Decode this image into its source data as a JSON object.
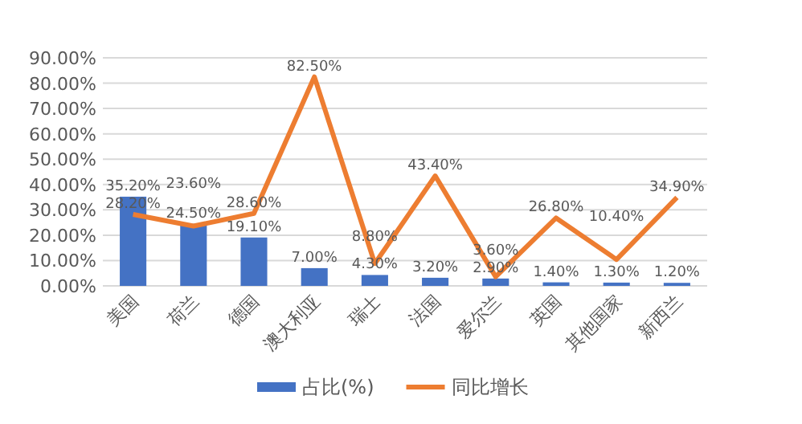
{
  "chart_data": {
    "type": "bar",
    "categories": [
      "美国",
      "荷兰",
      "德国",
      "澳大利亚",
      "瑞士",
      "法国",
      "爱尔兰",
      "英国",
      "其他国家",
      "新西兰"
    ],
    "series": [
      {
        "name": "占比(%)",
        "color": "#4472c4",
        "values": [
          35.2,
          24.5,
          19.1,
          7.0,
          4.3,
          3.2,
          2.9,
          1.4,
          1.3,
          1.2
        ],
        "value_labels": [
          "35.20%",
          "24.50%",
          "19.10%",
          "7.00%",
          "4.30%",
          "3.20%",
          "2.90%",
          "1.40%",
          "1.30%",
          "1.20%"
        ]
      },
      {
        "name": "同比增长",
        "type": "line",
        "color": "#ed7d31",
        "values": [
          28.2,
          23.6,
          28.6,
          82.5,
          8.8,
          43.4,
          3.6,
          26.8,
          10.4,
          34.9
        ],
        "value_labels": [
          "28.20%",
          "23.60%",
          "28.60%",
          "82.50%",
          "8.80%",
          "43.40%",
          "3.60%",
          "26.80%",
          "10.40%",
          "34.90%"
        ]
      }
    ],
    "ylim": [
      0,
      90
    ],
    "yticks": [
      {
        "value": 0,
        "label": "0.00%"
      },
      {
        "value": 10,
        "label": "10.00%"
      },
      {
        "value": 20,
        "label": "20.00%"
      },
      {
        "value": 30,
        "label": "30.00%"
      },
      {
        "value": 40,
        "label": "40.00%"
      },
      {
        "value": 50,
        "label": "50.00%"
      },
      {
        "value": 60,
        "label": "60.00%"
      },
      {
        "value": 70,
        "label": "70.00%"
      },
      {
        "value": 80,
        "label": "80.00%"
      },
      {
        "value": 90,
        "label": "90.00%"
      }
    ],
    "grid": "y",
    "legend": "bottom",
    "marker": "none"
  }
}
